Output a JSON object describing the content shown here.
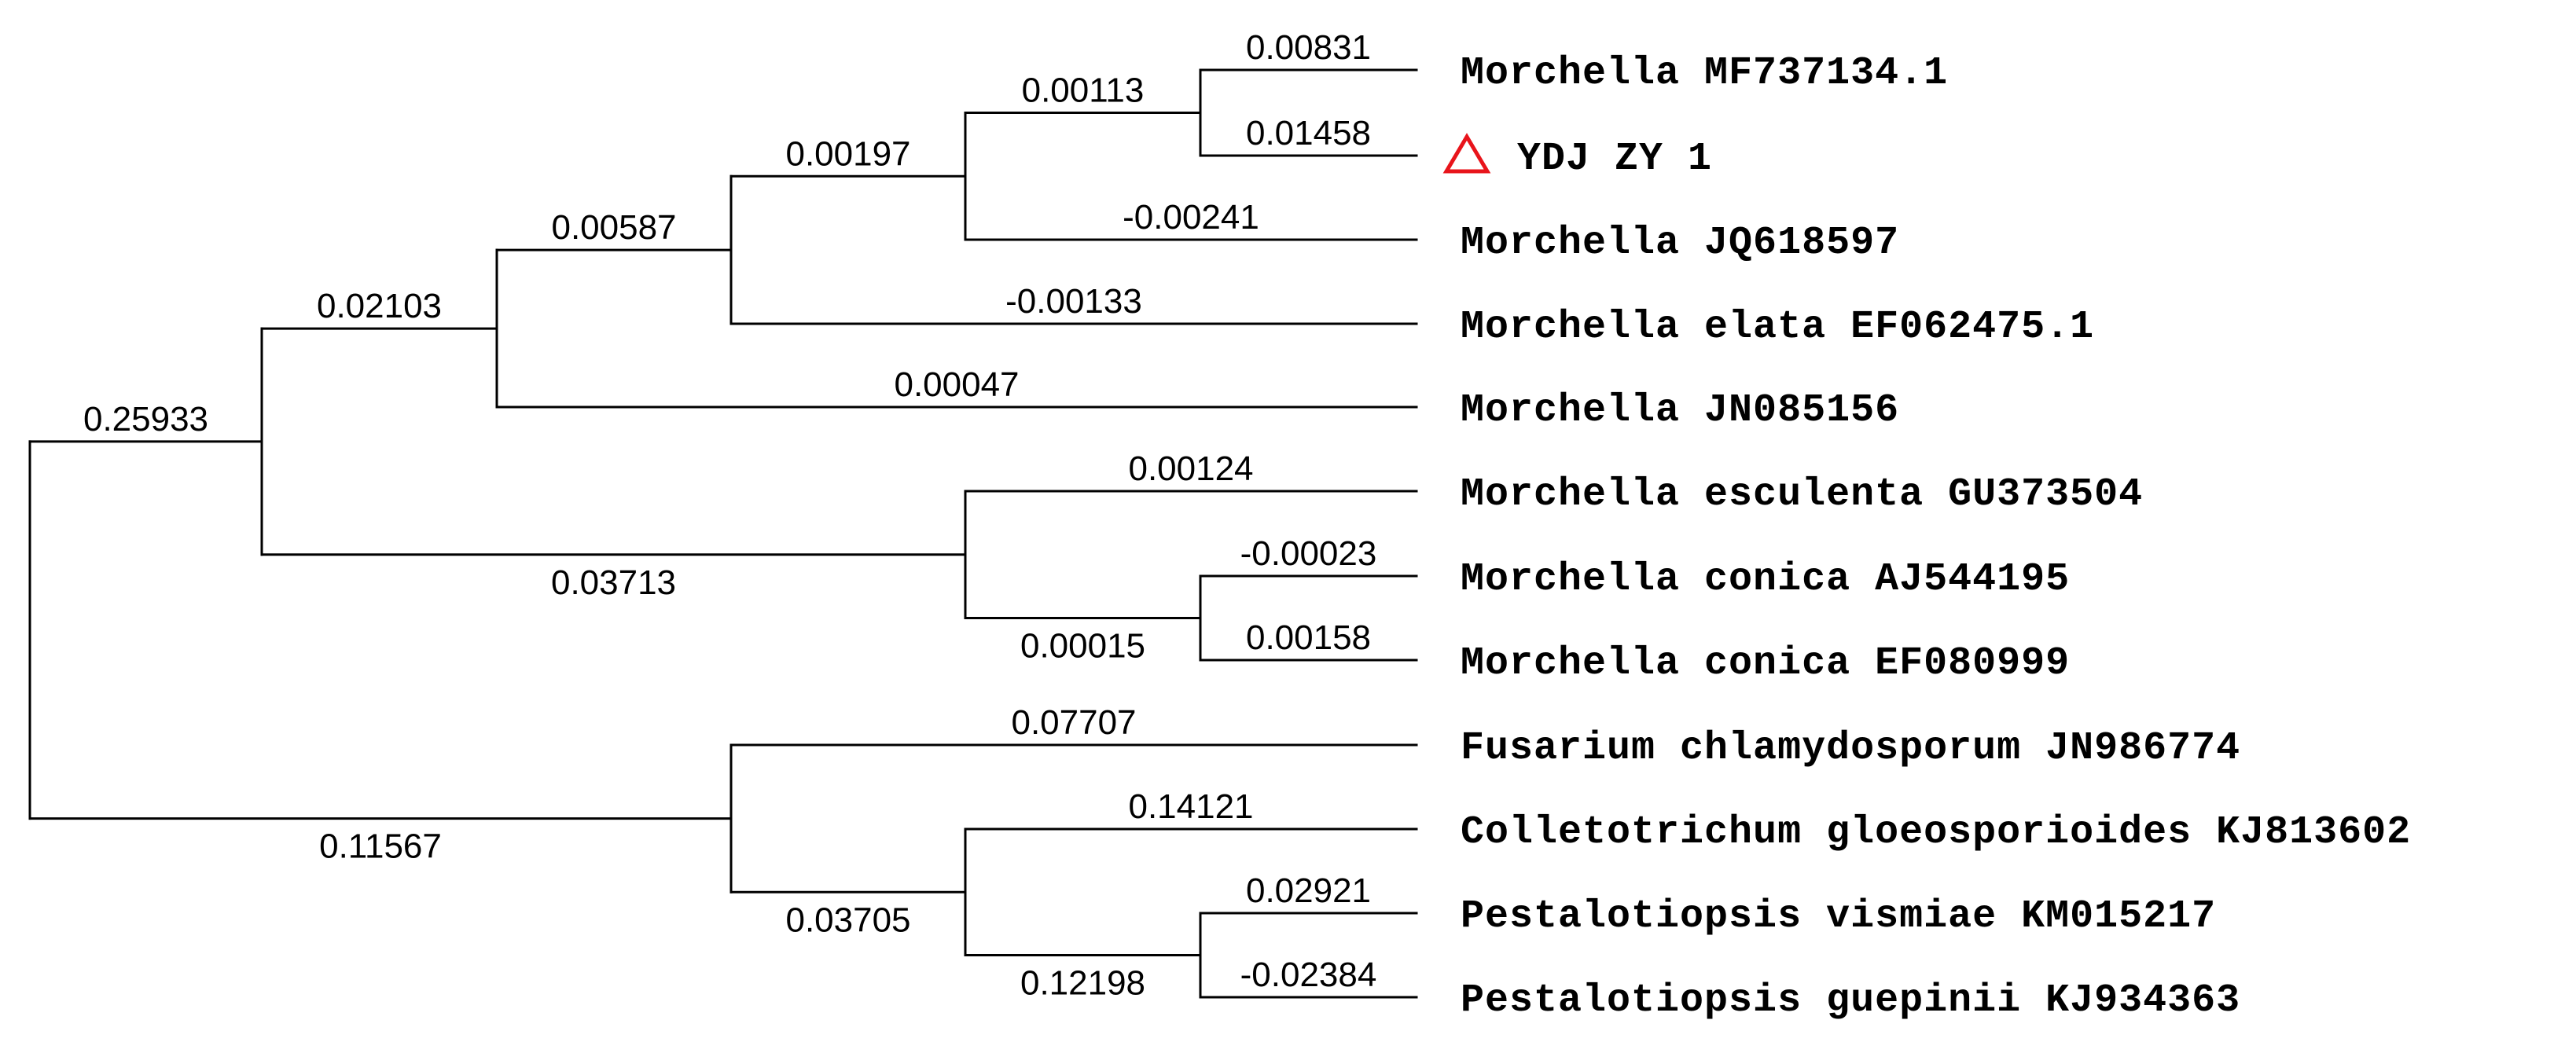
{
  "tree": {
    "marker_color": "#e8141b",
    "taxa": [
      {
        "label": "Morchella MF737134.1",
        "marked": false
      },
      {
        "label": "YDJ ZY 1",
        "marked": true
      },
      {
        "label": "Morchella JQ618597",
        "marked": false
      },
      {
        "label": "Morchella elata EF062475.1",
        "marked": false
      },
      {
        "label": "Morchella JN085156",
        "marked": false
      },
      {
        "label": "Morchella esculenta GU373504",
        "marked": false
      },
      {
        "label": "Morchella conica AJ544195",
        "marked": false
      },
      {
        "label": "Morchella conica EF080999",
        "marked": false
      },
      {
        "label": "Fusarium chlamydosporum JN986774",
        "marked": false
      },
      {
        "label": "Colletotrichum gloeosporioides KJ813602",
        "marked": false
      },
      {
        "label": "Pestalotiopsis vismiae KM015217",
        "marked": false
      },
      {
        "label": "Pestalotiopsis guepinii KJ934363",
        "marked": false
      }
    ],
    "branch_lengths": [
      {
        "id": "mf737134",
        "value": "0.00831"
      },
      {
        "id": "ydj",
        "value": "0.01458"
      },
      {
        "id": "inner_mf_ydj",
        "value": "0.00113"
      },
      {
        "id": "jq618597",
        "value": "-0.00241"
      },
      {
        "id": "inner_mf_ydj_jq",
        "value": "0.00197"
      },
      {
        "id": "elata",
        "value": "-0.00133"
      },
      {
        "id": "inner_to_elata",
        "value": "0.00587"
      },
      {
        "id": "jn085156",
        "value": "0.00047"
      },
      {
        "id": "inner_to_jn085156",
        "value": "0.02103"
      },
      {
        "id": "esculenta",
        "value": "0.00124"
      },
      {
        "id": "conica_aj",
        "value": "-0.00023"
      },
      {
        "id": "conica_ef",
        "value": "0.00158"
      },
      {
        "id": "inner_conica",
        "value": "0.00015"
      },
      {
        "id": "inner_esc_conica",
        "value": "0.03713"
      },
      {
        "id": "morchella_clade",
        "value": "0.25933"
      },
      {
        "id": "fusarium",
        "value": "0.07707"
      },
      {
        "id": "colletotrichum",
        "value": "0.14121"
      },
      {
        "id": "vismiae",
        "value": "0.02921"
      },
      {
        "id": "guepinii",
        "value": "-0.02384"
      },
      {
        "id": "inner_pestalotiopsis",
        "value": "0.12198"
      },
      {
        "id": "inner_coll_pest",
        "value": "0.03705"
      },
      {
        "id": "outgroup_clade",
        "value": "0.11567"
      }
    ]
  }
}
